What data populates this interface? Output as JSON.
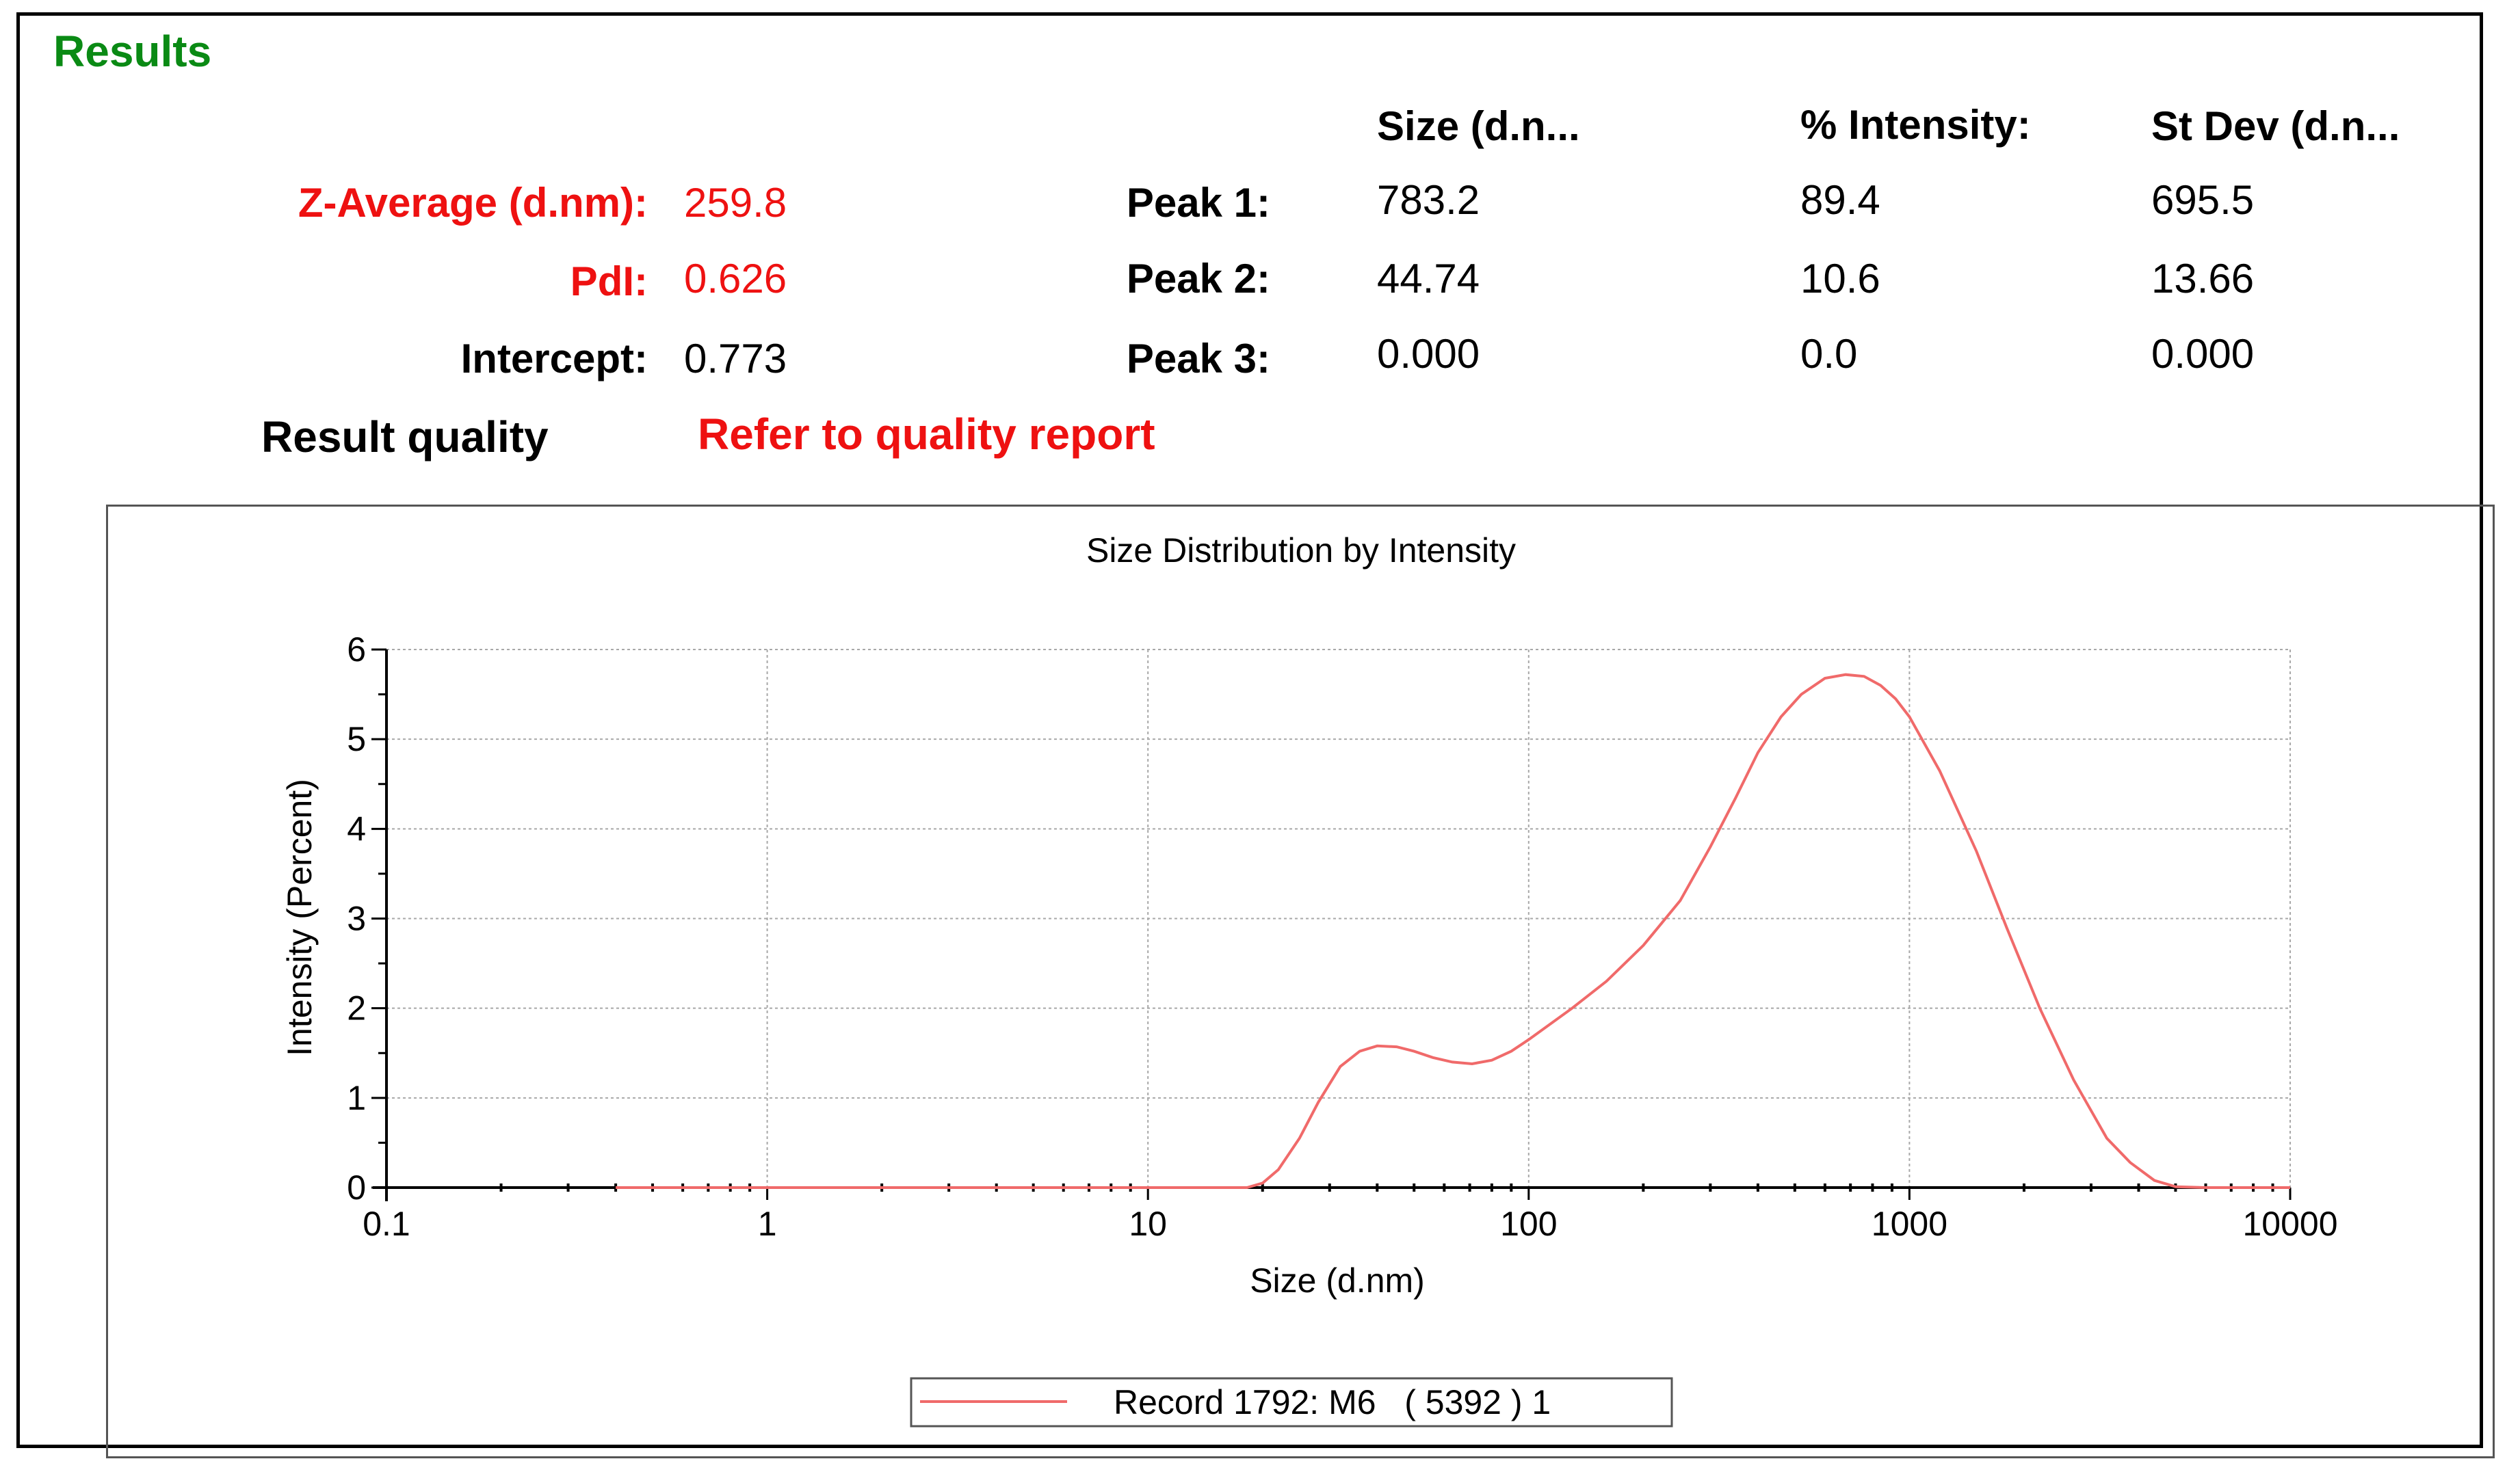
{
  "results": {
    "title": "Results",
    "z_average": {
      "label": "Z-Average (d.nm):",
      "value": "259.8"
    },
    "pdi": {
      "label": "PdI:",
      "value": "0.626"
    },
    "intercept": {
      "label": "Intercept:",
      "value": "0.773"
    },
    "result_quality": {
      "label": "Result quality",
      "value": "Refer to quality report"
    },
    "headers": {
      "size": "Size (d.n...",
      "intensity": "% Intensity:",
      "stdev": "St Dev (d.n..."
    },
    "peaks": [
      {
        "label": "Peak 1:",
        "size": "783.2",
        "intensity": "89.4",
        "stdev": "695.5"
      },
      {
        "label": "Peak 2:",
        "size": "44.74",
        "intensity": "10.6",
        "stdev": "13.66"
      },
      {
        "label": "Peak 3:",
        "size": "0.000",
        "intensity": "0.0",
        "stdev": "0.000"
      }
    ]
  },
  "colors": {
    "title": "#0a8a14",
    "highlight": "#ee1111",
    "series": "#f06a6a"
  },
  "chart_data": {
    "type": "line",
    "title": "Size Distribution by Intensity",
    "xlabel": "Size (d.nm)",
    "ylabel": "Intensity (Percent)",
    "x_scale": "log",
    "xlim": [
      0.1,
      10000
    ],
    "ylim": [
      0,
      6
    ],
    "x_ticks": [
      "0.1",
      "1",
      "10",
      "100",
      "1000",
      "10000"
    ],
    "y_ticks": [
      "0",
      "1",
      "2",
      "3",
      "4",
      "5",
      "6"
    ],
    "grid": true,
    "legend_position": "bottom-center",
    "series": [
      {
        "name": "Record 1792: M6   ( 5392 ) 1",
        "x": [
          0.4,
          1,
          5,
          10,
          18.2,
          20,
          22,
          25,
          28,
          32,
          36,
          40,
          45,
          50,
          56,
          63,
          71,
          80,
          90,
          100,
          130,
          160,
          200,
          250,
          300,
          350,
          400,
          460,
          520,
          600,
          680,
          760,
          840,
          920,
          1000,
          1200,
          1500,
          1800,
          2200,
          2700,
          3300,
          3800,
          4400,
          5000,
          6000,
          8000,
          10000
        ],
        "y": [
          0,
          0,
          0,
          0,
          0,
          0.05,
          0.2,
          0.55,
          0.95,
          1.35,
          1.52,
          1.58,
          1.57,
          1.52,
          1.45,
          1.4,
          1.38,
          1.42,
          1.52,
          1.65,
          2.0,
          2.3,
          2.7,
          3.2,
          3.8,
          4.35,
          4.85,
          5.25,
          5.5,
          5.68,
          5.72,
          5.7,
          5.6,
          5.45,
          5.25,
          4.65,
          3.75,
          2.9,
          2.0,
          1.2,
          0.55,
          0.28,
          0.08,
          0.01,
          0,
          0,
          0
        ]
      }
    ]
  }
}
